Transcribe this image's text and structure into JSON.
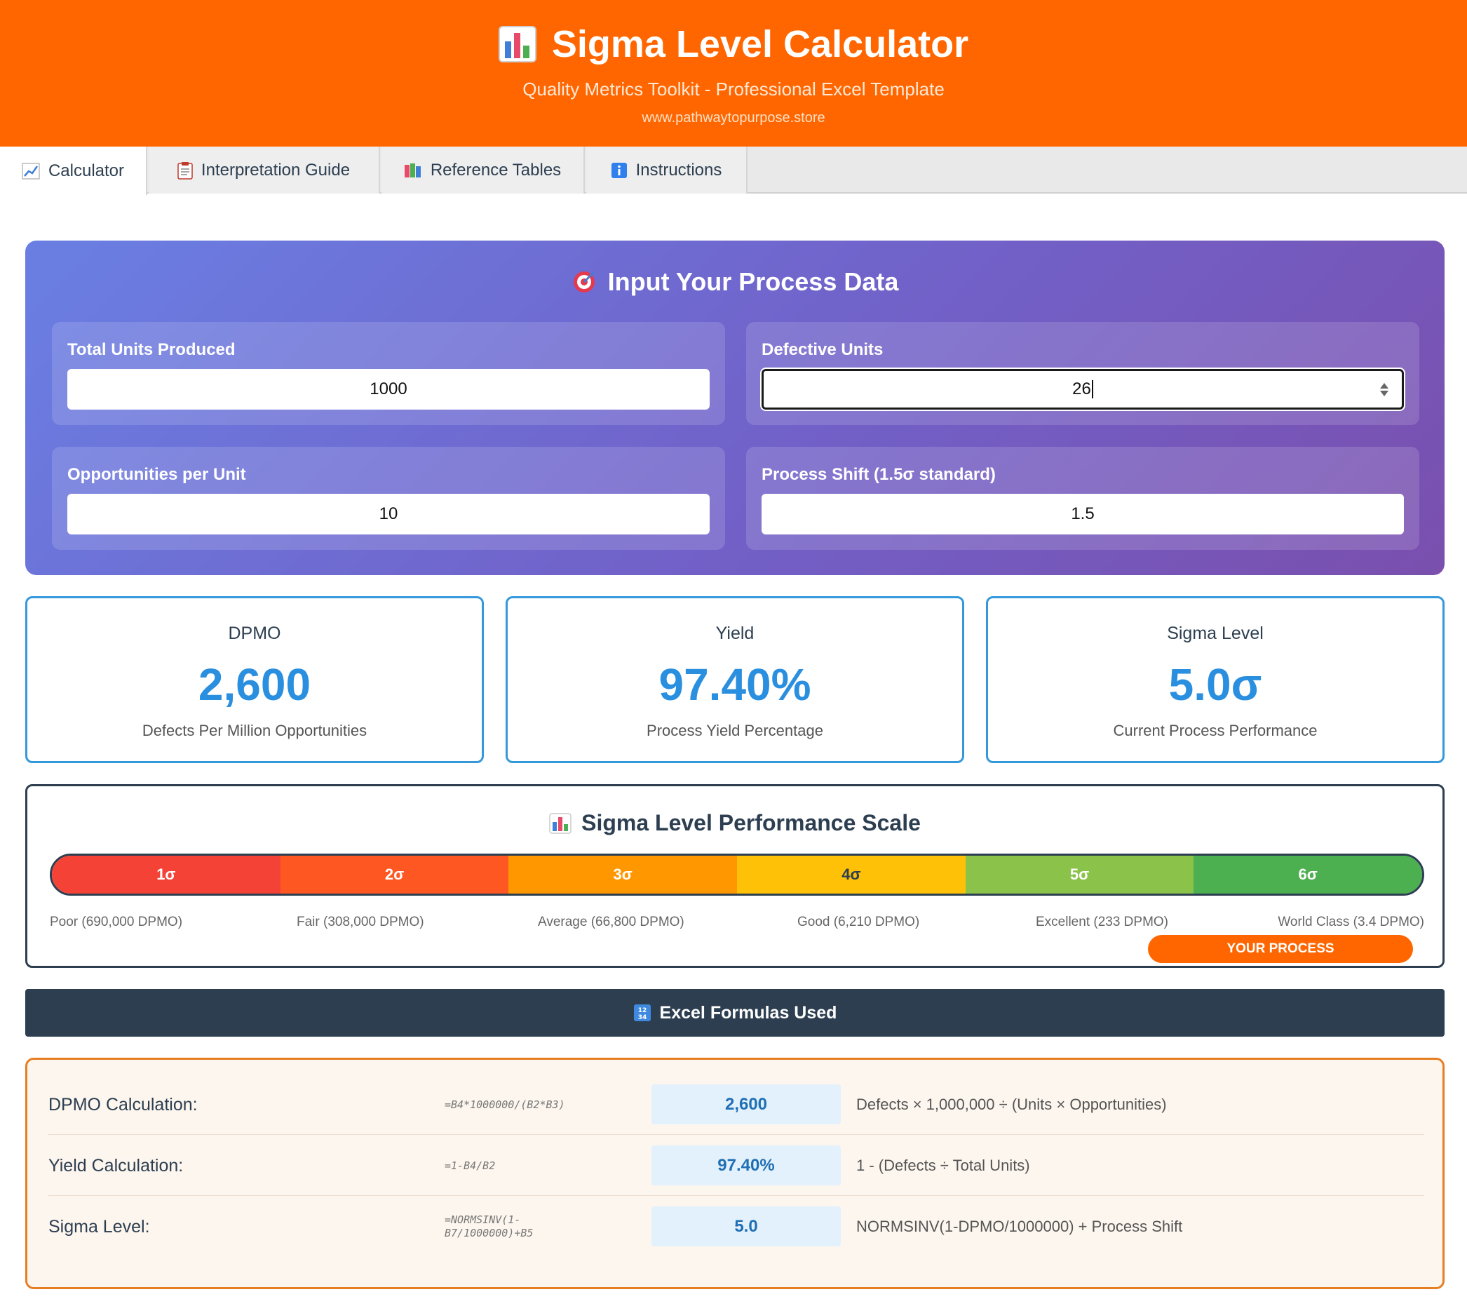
{
  "header": {
    "title": "Sigma Level Calculator",
    "subtitle": "Quality Metrics Toolkit - Professional Excel Template",
    "url": "www.pathwaytopurpose.store"
  },
  "tabs": [
    {
      "label": "Calculator",
      "icon": "chart-up-icon",
      "active": true
    },
    {
      "label": "Interpretation Guide",
      "icon": "clipboard-icon",
      "active": false
    },
    {
      "label": "Reference Tables",
      "icon": "books-icon",
      "active": false
    },
    {
      "label": "Instructions",
      "icon": "info-icon",
      "active": false
    }
  ],
  "input": {
    "title": "Input Your Process Data",
    "fields": [
      {
        "label": "Total Units Produced",
        "value": "1000"
      },
      {
        "label": "Defective Units",
        "value": "26"
      },
      {
        "label": "Opportunities per Unit",
        "value": "10"
      },
      {
        "label": "Process Shift (1.5σ standard)",
        "value": "1.5"
      }
    ]
  },
  "metrics": [
    {
      "label": "DPMO",
      "value": "2,600",
      "desc": "Defects Per Million Opportunities"
    },
    {
      "label": "Yield",
      "value": "97.40%",
      "desc": "Process Yield Percentage"
    },
    {
      "label": "Sigma Level",
      "value": "5.0σ",
      "desc": "Current Process Performance"
    }
  ],
  "scale": {
    "title": "Sigma Level Performance Scale",
    "segments": [
      {
        "label": "1σ",
        "color": "#f44336"
      },
      {
        "label": "2σ",
        "color": "#ff5722"
      },
      {
        "label": "3σ",
        "color": "#ff9800"
      },
      {
        "label": "4σ",
        "color": "#ffc107"
      },
      {
        "label": "5σ",
        "color": "#8bc34a"
      },
      {
        "label": "6σ",
        "color": "#4caf50"
      }
    ],
    "labels": [
      "Poor (690,000 DPMO)",
      "Fair (308,000 DPMO)",
      "Average (66,800 DPMO)",
      "Good (6,210 DPMO)",
      "Excellent (233 DPMO)",
      "World Class (3.4 DPMO)"
    ],
    "marker": "YOUR PROCESS"
  },
  "formulas": {
    "title": "Excel Formulas Used",
    "rows": [
      {
        "label": "DPMO Calculation:",
        "formula": "=B4*1000000/(B2*B3)",
        "value": "2,600",
        "desc": "Defects × 1,000,000 ÷ (Units × Opportunities)"
      },
      {
        "label": "Yield Calculation:",
        "formula": "=1-B4/B2",
        "value": "97.40%",
        "desc": "1 - (Defects ÷ Total Units)"
      },
      {
        "label": "Sigma Level:",
        "formula": "=NORMSINV(1-B7/1000000)+B5",
        "value": "5.0",
        "desc": "NORMSINV(1-DPMO/1000000) + Process Shift"
      }
    ]
  },
  "colors": {
    "brand": "#ff6600",
    "accent_blue": "#2a8fdf",
    "dark": "#2c3e50"
  }
}
